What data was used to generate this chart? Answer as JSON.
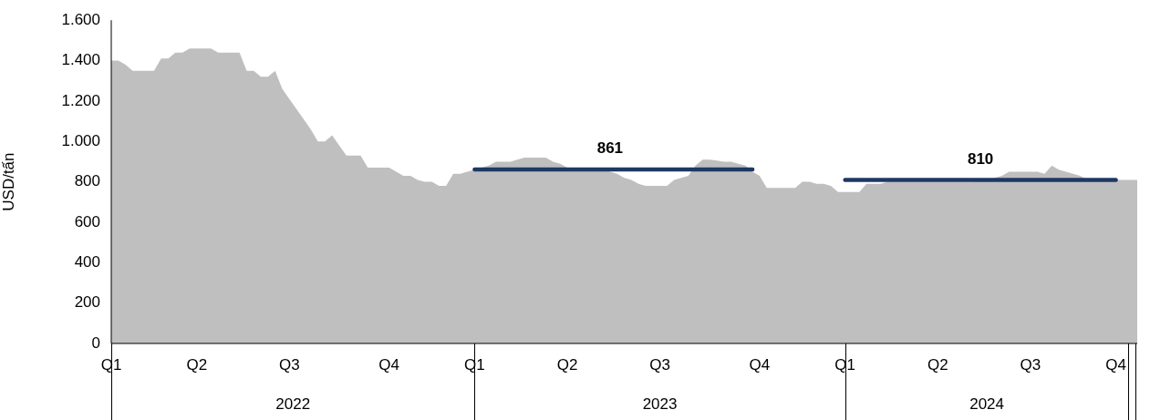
{
  "chart_data": {
    "type": "area",
    "ylabel": "USD/tấn",
    "categories": [
      "Q1",
      null,
      null,
      null,
      null,
      null,
      null,
      null,
      null,
      null,
      null,
      null,
      "Q2",
      null,
      null,
      null,
      null,
      null,
      null,
      null,
      null,
      null,
      null,
      null,
      null,
      "Q3",
      null,
      null,
      null,
      null,
      null,
      null,
      null,
      null,
      null,
      null,
      null,
      null,
      null,
      "Q4",
      null,
      null,
      null,
      null,
      null,
      null,
      null,
      null,
      null,
      null,
      null,
      "Q1",
      null,
      null,
      null,
      null,
      null,
      null,
      null,
      null,
      null,
      null,
      null,
      null,
      "Q2",
      null,
      null,
      null,
      null,
      null,
      null,
      null,
      null,
      null,
      null,
      null,
      null,
      "Q3",
      null,
      null,
      null,
      null,
      null,
      null,
      null,
      null,
      null,
      null,
      null,
      null,
      null,
      "Q4",
      null,
      null,
      null,
      null,
      null,
      null,
      null,
      null,
      null,
      null,
      null,
      "Q1",
      null,
      null,
      null,
      null,
      null,
      null,
      null,
      null,
      null,
      null,
      null,
      null,
      "Q2",
      null,
      null,
      null,
      null,
      null,
      null,
      null,
      null,
      null,
      null,
      null,
      null,
      "Q3",
      null,
      null,
      null,
      null,
      null,
      null,
      null,
      null,
      null,
      null,
      null,
      "Q4",
      null,
      null,
      null
    ],
    "series": [
      {
        "color": "#bfbfbf",
        "values": [
          1400,
          1400,
          1380,
          1350,
          1350,
          1350,
          1350,
          1410,
          1410,
          1440,
          1440,
          1460,
          1460,
          1460,
          1460,
          1440,
          1440,
          1440,
          1440,
          1350,
          1350,
          1320,
          1320,
          1350,
          1260,
          1210,
          1160,
          1110,
          1060,
          1000,
          1000,
          1030,
          980,
          930,
          930,
          930,
          870,
          870,
          870,
          870,
          850,
          830,
          830,
          810,
          800,
          800,
          780,
          780,
          840,
          840,
          850,
          860,
          870,
          880,
          900,
          900,
          900,
          910,
          920,
          920,
          920,
          920,
          900,
          890,
          870,
          870,
          870,
          870,
          870,
          865,
          850,
          840,
          820,
          810,
          790,
          780,
          780,
          780,
          780,
          810,
          820,
          830,
          880,
          910,
          910,
          905,
          900,
          900,
          890,
          880,
          850,
          830,
          770,
          770,
          770,
          770,
          770,
          800,
          800,
          790,
          790,
          780,
          750,
          750,
          750,
          750,
          790,
          790,
          790,
          800,
          800,
          800,
          800,
          800,
          800,
          800,
          800,
          800,
          800,
          800,
          800,
          800,
          810,
          810,
          820,
          830,
          850,
          850,
          850,
          850,
          850,
          840,
          880,
          860,
          850,
          840,
          830,
          810,
          810,
          810,
          810,
          810,
          810,
          810,
          810
        ]
      },
      {
        "type": "line",
        "color": "#1f3864",
        "values": [
          null,
          null,
          null,
          null,
          null,
          null,
          null,
          null,
          null,
          null,
          null,
          null,
          null,
          null,
          null,
          null,
          null,
          null,
          null,
          null,
          null,
          null,
          null,
          null,
          null,
          null,
          null,
          null,
          null,
          null,
          null,
          null,
          null,
          null,
          null,
          null,
          null,
          null,
          null,
          null,
          null,
          null,
          null,
          null,
          null,
          null,
          null,
          null,
          null,
          null,
          null,
          861,
          861,
          861,
          861,
          861,
          861,
          861,
          861,
          861,
          861,
          861,
          861,
          861,
          861,
          861,
          861,
          861,
          861,
          861,
          861,
          861,
          861,
          861,
          861,
          861,
          861,
          861,
          861,
          861,
          861,
          861,
          861,
          861,
          861,
          861,
          861,
          861,
          861,
          861,
          861,
          null,
          null,
          null,
          null,
          null,
          null,
          null,
          null,
          null,
          null,
          null,
          null,
          null,
          null,
          null,
          null,
          null,
          null,
          null,
          null,
          null,
          null,
          null,
          null,
          null,
          null,
          null,
          null,
          null,
          null,
          null,
          null,
          null,
          null,
          null,
          null,
          null,
          null,
          null,
          null,
          null,
          null,
          null,
          null,
          null,
          null,
          null,
          null,
          null,
          null,
          null,
          null,
          null,
          null
        ],
        "value_labels": [
          null,
          null,
          null,
          null,
          null,
          null,
          null,
          null,
          null,
          null,
          null,
          null,
          null,
          null,
          null,
          null,
          null,
          null,
          null,
          null,
          null,
          null,
          null,
          null,
          null,
          null,
          null,
          null,
          null,
          null,
          null,
          null,
          null,
          null,
          null,
          null,
          null,
          null,
          null,
          null,
          null,
          null,
          null,
          null,
          null,
          null,
          null,
          null,
          null,
          null,
          null,
          null,
          null,
          null,
          null,
          null,
          null,
          null,
          null,
          null,
          null,
          null,
          null,
          null,
          null,
          null,
          null,
          null,
          null,
          null,
          "861",
          null,
          null,
          null,
          null,
          null,
          null,
          null,
          null,
          null,
          null,
          null,
          null,
          null,
          null,
          null,
          null,
          null,
          null,
          null,
          null,
          null,
          null,
          null,
          null,
          null,
          null,
          null,
          null,
          null,
          null,
          null,
          null,
          null,
          null,
          null,
          null,
          null,
          null,
          null,
          null,
          null,
          null,
          null,
          null,
          null,
          null,
          null,
          null,
          null,
          null,
          null,
          null,
          null,
          null,
          null,
          null,
          null,
          null,
          null,
          null,
          null,
          null,
          null,
          null,
          null,
          null,
          null,
          null,
          null,
          null,
          null,
          null,
          null,
          null
        ]
      },
      {
        "type": "line",
        "color": "#1f3864",
        "values": [
          null,
          null,
          null,
          null,
          null,
          null,
          null,
          null,
          null,
          null,
          null,
          null,
          null,
          null,
          null,
          null,
          null,
          null,
          null,
          null,
          null,
          null,
          null,
          null,
          null,
          null,
          null,
          null,
          null,
          null,
          null,
          null,
          null,
          null,
          null,
          null,
          null,
          null,
          null,
          null,
          null,
          null,
          null,
          null,
          null,
          null,
          null,
          null,
          null,
          null,
          null,
          null,
          null,
          null,
          null,
          null,
          null,
          null,
          null,
          null,
          null,
          null,
          null,
          null,
          null,
          null,
          null,
          null,
          null,
          null,
          null,
          null,
          null,
          null,
          null,
          null,
          null,
          null,
          null,
          null,
          null,
          null,
          null,
          null,
          null,
          null,
          null,
          null,
          null,
          null,
          null,
          null,
          null,
          null,
          null,
          null,
          null,
          null,
          null,
          null,
          null,
          null,
          null,
          810,
          810,
          810,
          810,
          810,
          810,
          810,
          810,
          810,
          810,
          810,
          810,
          810,
          810,
          810,
          810,
          810,
          810,
          810,
          810,
          810,
          810,
          810,
          810,
          810,
          810,
          810,
          810,
          810,
          810,
          810,
          810,
          810,
          810,
          810,
          810,
          810,
          810,
          810,
          null,
          null,
          null
        ],
        "value_labels": [
          null,
          null,
          null,
          null,
          null,
          null,
          null,
          null,
          null,
          null,
          null,
          null,
          null,
          null,
          null,
          null,
          null,
          null,
          null,
          null,
          null,
          null,
          null,
          null,
          null,
          null,
          null,
          null,
          null,
          null,
          null,
          null,
          null,
          null,
          null,
          null,
          null,
          null,
          null,
          null,
          null,
          null,
          null,
          null,
          null,
          null,
          null,
          null,
          null,
          null,
          null,
          null,
          null,
          null,
          null,
          null,
          null,
          null,
          null,
          null,
          null,
          null,
          null,
          null,
          null,
          null,
          null,
          null,
          null,
          null,
          null,
          null,
          null,
          null,
          null,
          null,
          null,
          null,
          null,
          null,
          null,
          null,
          null,
          null,
          null,
          null,
          null,
          null,
          null,
          null,
          null,
          null,
          null,
          null,
          null,
          null,
          null,
          null,
          null,
          null,
          null,
          null,
          null,
          null,
          null,
          null,
          null,
          null,
          null,
          null,
          null,
          null,
          null,
          null,
          null,
          null,
          null,
          null,
          null,
          null,
          null,
          null,
          "810",
          null,
          null,
          null,
          null,
          null,
          null,
          null,
          null,
          null,
          null,
          null,
          null,
          null,
          null,
          null,
          null,
          null,
          null,
          null,
          null,
          null,
          null
        ]
      }
    ],
    "ylim": [
      0,
      1600
    ],
    "yticks": [
      0,
      {
        "value": 200,
        "label": "200"
      },
      {
        "value": 400,
        "label": "400"
      },
      {
        "value": 600,
        "label": "600"
      },
      {
        "value": 800,
        "label": "800"
      },
      {
        "value": 1000,
        "label": "1.000"
      },
      {
        "value": 1200,
        "label": "1.200"
      },
      {
        "value": 1400,
        "label": "1.400"
      },
      {
        "value": 1600,
        "label": "1.600"
      }
    ],
    "annotations": [
      "2022",
      "2023",
      "2024"
    ],
    "grid": false,
    "legend": false,
    "marker": "none",
    "line_style": "solid"
  }
}
